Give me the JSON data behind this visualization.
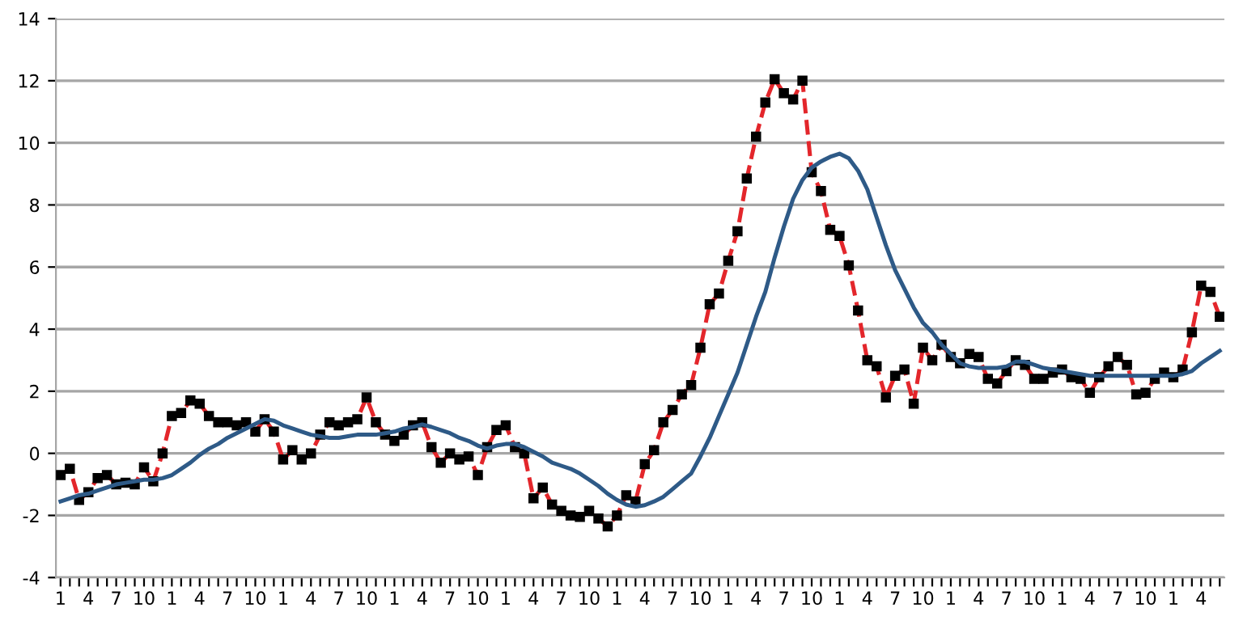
{
  "chart_data": {
    "type": "line",
    "categories": [
      "1",
      null,
      null,
      "4",
      null,
      null,
      "7",
      null,
      null,
      "10",
      null,
      null,
      "1",
      null,
      null,
      "4",
      null,
      null,
      "7",
      null,
      null,
      "10",
      null,
      null,
      "1",
      null,
      null,
      "4",
      null,
      null,
      "7",
      null,
      null,
      "10",
      null,
      null,
      "1",
      null,
      null,
      "4",
      null,
      null,
      "7",
      null,
      null,
      "10",
      null,
      null,
      "1",
      null,
      null,
      "4",
      null,
      null,
      "7",
      null,
      null,
      "10",
      null,
      null,
      "1",
      null,
      null,
      "4",
      null,
      null,
      "7",
      null,
      null,
      "10",
      null,
      null,
      "1",
      null,
      null,
      "4",
      null,
      null,
      "7",
      null,
      null,
      "10",
      null,
      null,
      "1",
      null,
      null,
      "4",
      null,
      null,
      "7",
      null,
      null,
      "10",
      null,
      null,
      "1",
      null,
      null,
      "4",
      null,
      null,
      "7",
      null,
      null,
      "10",
      null,
      null,
      "1",
      null,
      null,
      "4",
      null,
      null,
      "7",
      null,
      null,
      "10",
      null,
      null,
      "1",
      null,
      null,
      "4",
      null,
      null
    ],
    "series": [
      {
        "color": "#e3262b",
        "marker": "square",
        "line_style": "dashed",
        "values": [
          -0.7,
          -0.5,
          -1.5,
          -1.25,
          -0.8,
          -0.7,
          -1.0,
          -0.95,
          -1.0,
          -0.45,
          -0.9,
          0.0,
          1.2,
          1.3,
          1.7,
          1.6,
          1.2,
          1.0,
          1.0,
          0.9,
          1.0,
          0.7,
          1.1,
          0.7,
          -0.2,
          0.1,
          -0.2,
          0.0,
          0.6,
          1.0,
          0.9,
          1.0,
          1.1,
          1.8,
          1.0,
          0.6,
          0.4,
          0.6,
          0.9,
          1.0,
          0.2,
          -0.3,
          0.0,
          -0.2,
          -0.1,
          -0.7,
          0.2,
          0.75,
          0.9,
          0.2,
          0.0,
          -1.45,
          -1.1,
          -1.65,
          -1.85,
          -2.0,
          -2.05,
          -1.85,
          -2.1,
          -2.35,
          -2.0,
          -1.35,
          -1.55,
          -0.35,
          0.1,
          1.0,
          1.4,
          1.9,
          2.2,
          3.4,
          4.8,
          5.15,
          6.2,
          7.15,
          8.85,
          10.2,
          11.3,
          12.05,
          11.6,
          11.4,
          12.0,
          9.05,
          8.45,
          7.2,
          7.0,
          6.05,
          4.6,
          3.0,
          2.8,
          1.8,
          2.5,
          2.7,
          1.6,
          3.4,
          3.0,
          3.5,
          3.1,
          2.9,
          3.2,
          3.1,
          2.4,
          2.25,
          2.65,
          3.0,
          2.85,
          2.4,
          2.4,
          2.6,
          2.7,
          2.45,
          2.4,
          1.95,
          2.45,
          2.8,
          3.1,
          2.85,
          1.9,
          1.95,
          2.4,
          2.6,
          2.45,
          2.7,
          3.9,
          5.4,
          5.2,
          4.4
        ]
      },
      {
        "color": "#2e5a87",
        "marker": "none",
        "line_style": "solid",
        "values": [
          -1.55,
          -1.45,
          -1.35,
          -1.3,
          -1.2,
          -1.1,
          -1.0,
          -0.95,
          -0.9,
          -0.85,
          -0.85,
          -0.8,
          -0.7,
          -0.5,
          -0.3,
          -0.05,
          0.15,
          0.3,
          0.5,
          0.65,
          0.8,
          0.95,
          1.1,
          1.05,
          0.9,
          0.8,
          0.7,
          0.6,
          0.55,
          0.5,
          0.5,
          0.55,
          0.6,
          0.6,
          0.6,
          0.65,
          0.7,
          0.8,
          0.85,
          0.93,
          0.85,
          0.75,
          0.65,
          0.5,
          0.4,
          0.25,
          0.15,
          0.25,
          0.3,
          0.3,
          0.2,
          0.05,
          -0.1,
          -0.3,
          -0.4,
          -0.5,
          -0.65,
          -0.85,
          -1.05,
          -1.3,
          -1.5,
          -1.65,
          -1.72,
          -1.67,
          -1.55,
          -1.4,
          -1.15,
          -0.9,
          -0.65,
          -0.1,
          0.5,
          1.2,
          1.9,
          2.6,
          3.5,
          4.4,
          5.2,
          6.3,
          7.3,
          8.2,
          8.8,
          9.2,
          9.4,
          9.55,
          9.65,
          9.5,
          9.1,
          8.5,
          7.6,
          6.7,
          5.9,
          5.3,
          4.7,
          4.2,
          3.9,
          3.5,
          3.2,
          2.9,
          2.8,
          2.75,
          2.75,
          2.75,
          2.8,
          2.95,
          2.95,
          2.85,
          2.75,
          2.7,
          2.65,
          2.6,
          2.55,
          2.5,
          2.5,
          2.5,
          2.5,
          2.5,
          2.5,
          2.5,
          2.5,
          2.5,
          2.5,
          2.55,
          2.65,
          2.9,
          3.1,
          3.3
        ]
      }
    ],
    "ylim": [
      -4,
      14
    ],
    "yticks": [
      -4,
      -2,
      0,
      2,
      4,
      6,
      8,
      10,
      12,
      14
    ],
    "grid": "y",
    "legend": false
  }
}
